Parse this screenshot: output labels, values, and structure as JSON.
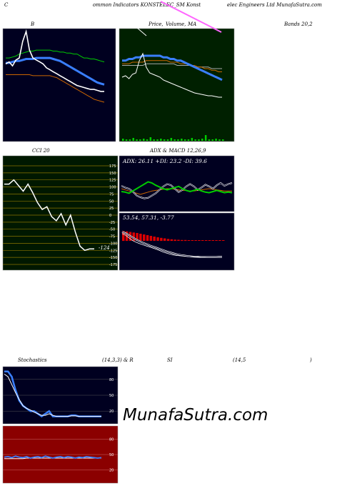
{
  "header": {
    "left": "C",
    "mid1": "ommon Indicators KONSTELEC_SM Konst",
    "right": "elec Engineers Ltd MunafaSutra.com"
  },
  "titles": {
    "bollinger": "B",
    "price": "Price,",
    "volume": "Volume,",
    "ma": "MA",
    "bands": "Bands 20,2",
    "cci": "CCI 20",
    "adx": "ADX & MACD 12,26,9",
    "stoch1": "Stochastics",
    "stoch2": "(14,3,3) & R",
    "rsi1": "SI",
    "rsi2": "(14,5",
    "rsi3": ")"
  },
  "adx_readout": "ADX: 26.11 +DI: 23.2 -DI: 39.6",
  "macd_readout": "53.54, 57.31, -3.77",
  "watermark": "MunafaSutra.com",
  "colors": {
    "panel_dark": "#000020",
    "panel_green": "#002000",
    "cci_bg": "#001800",
    "rsi_bg": "#8b0000",
    "gridline": "#8b7500",
    "white_line": "#ffffff",
    "green_line": "#00cc00",
    "blue_line": "#3a7fff",
    "orange_line": "#cc6600",
    "magenta_line": "#ff66ff"
  },
  "chart_data": [
    {
      "type": "line",
      "panel": "bollinger",
      "x": [
        1,
        2,
        3,
        4,
        5,
        6,
        7,
        8,
        9,
        10,
        11,
        12,
        13,
        14,
        15,
        16,
        17,
        18,
        19,
        20,
        21,
        22,
        23,
        24,
        25,
        26,
        27,
        28,
        29,
        30
      ],
      "series": [
        {
          "values": [
            152,
            154,
            150,
            156,
            158,
            175,
            185,
            166,
            158,
            156,
            154,
            152,
            148,
            146,
            144,
            142,
            140,
            138,
            136,
            134,
            132,
            130,
            129,
            128,
            127,
            126,
            126,
            125,
            124,
            124
          ]
        },
        {
          "values": [
            158,
            158,
            159,
            160,
            162,
            163,
            164,
            165,
            165,
            166,
            166,
            166,
            166,
            166,
            165,
            165,
            164,
            164,
            163,
            163,
            162,
            162,
            160,
            158,
            158,
            157,
            157,
            156,
            155,
            154
          ]
        },
        {
          "values": [
            153,
            153,
            154,
            155,
            155,
            156,
            157,
            157,
            157,
            158,
            158,
            158,
            158,
            158,
            157,
            156,
            155,
            153,
            151,
            149,
            147,
            145,
            143,
            141,
            139,
            137,
            135,
            133,
            132,
            131
          ]
        },
        {
          "values": [
            141,
            141,
            141,
            141,
            141,
            141,
            141,
            141,
            140,
            140,
            140,
            140,
            140,
            140,
            139,
            138,
            136,
            134,
            132,
            130,
            128,
            126,
            124,
            122,
            120,
            118,
            116,
            115,
            114,
            113
          ]
        }
      ],
      "ylim": [
        105,
        185
      ]
    },
    {
      "type": "line",
      "panel": "price-volume-ma",
      "x": [
        1,
        2,
        3,
        4,
        5,
        6,
        7,
        8,
        9,
        10,
        11,
        12,
        13,
        14,
        15,
        16,
        17,
        18,
        19,
        20,
        21,
        22,
        23,
        24,
        25,
        26,
        27,
        28,
        29,
        30
      ],
      "series": [
        {
          "values": [
            152,
            154,
            150,
            156,
            158,
            175,
            185,
            166,
            158,
            156,
            154,
            152,
            148,
            146,
            144,
            142,
            140,
            138,
            136,
            134,
            132,
            130,
            129,
            128,
            127,
            126,
            126,
            125,
            124,
            124
          ]
        },
        {
          "values": [
            149,
            149,
            150,
            150,
            151,
            151,
            152,
            152,
            152,
            152,
            152,
            152,
            151,
            151,
            150,
            150,
            149,
            149,
            148,
            147,
            146,
            145,
            144,
            143,
            142,
            141,
            140,
            139,
            138,
            137
          ]
        },
        {
          "values": [
            147,
            147,
            147,
            148,
            148,
            148,
            148,
            149,
            149,
            149,
            149,
            149,
            149,
            149,
            148,
            148,
            148,
            147,
            147,
            147,
            146,
            146,
            145,
            145,
            144,
            144,
            143,
            143,
            142,
            142
          ]
        },
        {
          "values": [
            146,
            146,
            146,
            146,
            146,
            146,
            146,
            147,
            147,
            147,
            147,
            147,
            147,
            147,
            147,
            147,
            146,
            146,
            146,
            146,
            146,
            145,
            145,
            145,
            145,
            145,
            144,
            144,
            144,
            144
          ]
        }
      ],
      "volume": [
        3,
        2,
        2,
        4,
        2,
        2,
        3,
        2,
        5,
        2,
        2,
        3,
        2,
        2,
        4,
        2,
        2,
        3,
        2,
        2,
        4,
        2,
        2,
        3,
        8,
        2,
        2,
        3,
        2,
        2
      ],
      "ylim": [
        105,
        185
      ]
    },
    {
      "type": "line",
      "panel": "cci",
      "yticks": [
        175,
        150,
        125,
        100,
        75,
        50,
        25,
        0,
        -25,
        -50,
        -75,
        -100,
        -125,
        -150,
        -175
      ],
      "values": [
        110,
        110,
        125,
        105,
        85,
        110,
        80,
        45,
        20,
        30,
        -5,
        -20,
        5,
        -35,
        0,
        -60,
        -110,
        -125,
        -120,
        -120
      ],
      "last_label": "-124",
      "ylim": [
        -175,
        175
      ]
    },
    {
      "type": "line",
      "panel": "adx",
      "series": [
        {
          "name": "ADX",
          "values": [
            30,
            28,
            26,
            24,
            22,
            20,
            22,
            24,
            26,
            27,
            28,
            29,
            30,
            30,
            29,
            28,
            27,
            27,
            26,
            26,
            27,
            28,
            29,
            30,
            29,
            28,
            27,
            26,
            26,
            26
          ]
        },
        {
          "name": "+DI",
          "values": [
            25,
            24,
            22,
            26,
            30,
            34,
            38,
            42,
            40,
            36,
            33,
            30,
            28,
            30,
            32,
            34,
            30,
            27,
            25,
            27,
            29,
            26,
            24,
            23,
            25,
            27,
            25,
            23,
            24,
            23
          ]
        },
        {
          "name": "-DI",
          "values": [
            35,
            32,
            30,
            25,
            18,
            15,
            13,
            14,
            18,
            22,
            28,
            34,
            38,
            36,
            30,
            24,
            28,
            34,
            38,
            34,
            28,
            32,
            37,
            34,
            30,
            36,
            40,
            35,
            38,
            40
          ]
        }
      ]
    },
    {
      "type": "bar",
      "panel": "macd",
      "macd": [
        -80,
        -70,
        -55,
        -40,
        -30,
        -22,
        -15,
        -8,
        -2,
        5,
        12,
        20,
        28,
        35,
        40,
        45,
        48,
        50,
        52,
        54,
        55,
        56,
        56,
        55,
        55,
        54,
        54,
        54,
        53,
        53
      ],
      "signal": [
        -90,
        -82,
        -70,
        -58,
        -46,
        -36,
        -27,
        -19,
        -11,
        -4,
        3,
        10,
        17,
        24,
        30,
        36,
        41,
        45,
        48,
        51,
        53,
        55,
        56,
        57,
        57,
        57,
        57,
        57,
        57,
        57
      ],
      "histogram": [
        -55,
        -53,
        -50,
        -47,
        -44,
        -40,
        -36,
        -32,
        -28,
        -24,
        -20,
        -17,
        -14,
        -11,
        -9,
        -7,
        -6,
        -5,
        -5,
        -4,
        -4,
        -4,
        -4,
        -4,
        -4,
        -4,
        -4,
        -4,
        -4,
        -4
      ]
    },
    {
      "type": "line",
      "panel": "stochastics",
      "yticks": [
        80,
        50,
        20
      ],
      "series": [
        {
          "name": "%K",
          "values": [
            95,
            95,
            85,
            60,
            40,
            30,
            25,
            20,
            20,
            15,
            10,
            15,
            20,
            10,
            10,
            10,
            10,
            10,
            12,
            12,
            10,
            10,
            10,
            10,
            10,
            10,
            10
          ]
        },
        {
          "name": "%D",
          "values": [
            90,
            85,
            70,
            55,
            42,
            30,
            25,
            22,
            18,
            15,
            12,
            12,
            15,
            12,
            10,
            10,
            10,
            10,
            11,
            11,
            10,
            10,
            10,
            10,
            10,
            10,
            10
          ]
        }
      ],
      "ylim": [
        0,
        100
      ]
    },
    {
      "type": "line",
      "panel": "rsi",
      "yticks": [
        80,
        50,
        20
      ],
      "series": [
        {
          "name": "RSI",
          "values": [
            45,
            46,
            44,
            47,
            45,
            44,
            46,
            43,
            45,
            46,
            44,
            47,
            45,
            43,
            45,
            46,
            44,
            46,
            45,
            43,
            45,
            44,
            46,
            45,
            44,
            43,
            44
          ]
        },
        {
          "name": "MA",
          "values": [
            42,
            42,
            42,
            42,
            42,
            42,
            43,
            43,
            43,
            43,
            43,
            43,
            43,
            43,
            43,
            43,
            43,
            43,
            43,
            43,
            43,
            43,
            43,
            43,
            43,
            43,
            43
          ]
        }
      ],
      "ylim": [
        0,
        100
      ]
    }
  ]
}
